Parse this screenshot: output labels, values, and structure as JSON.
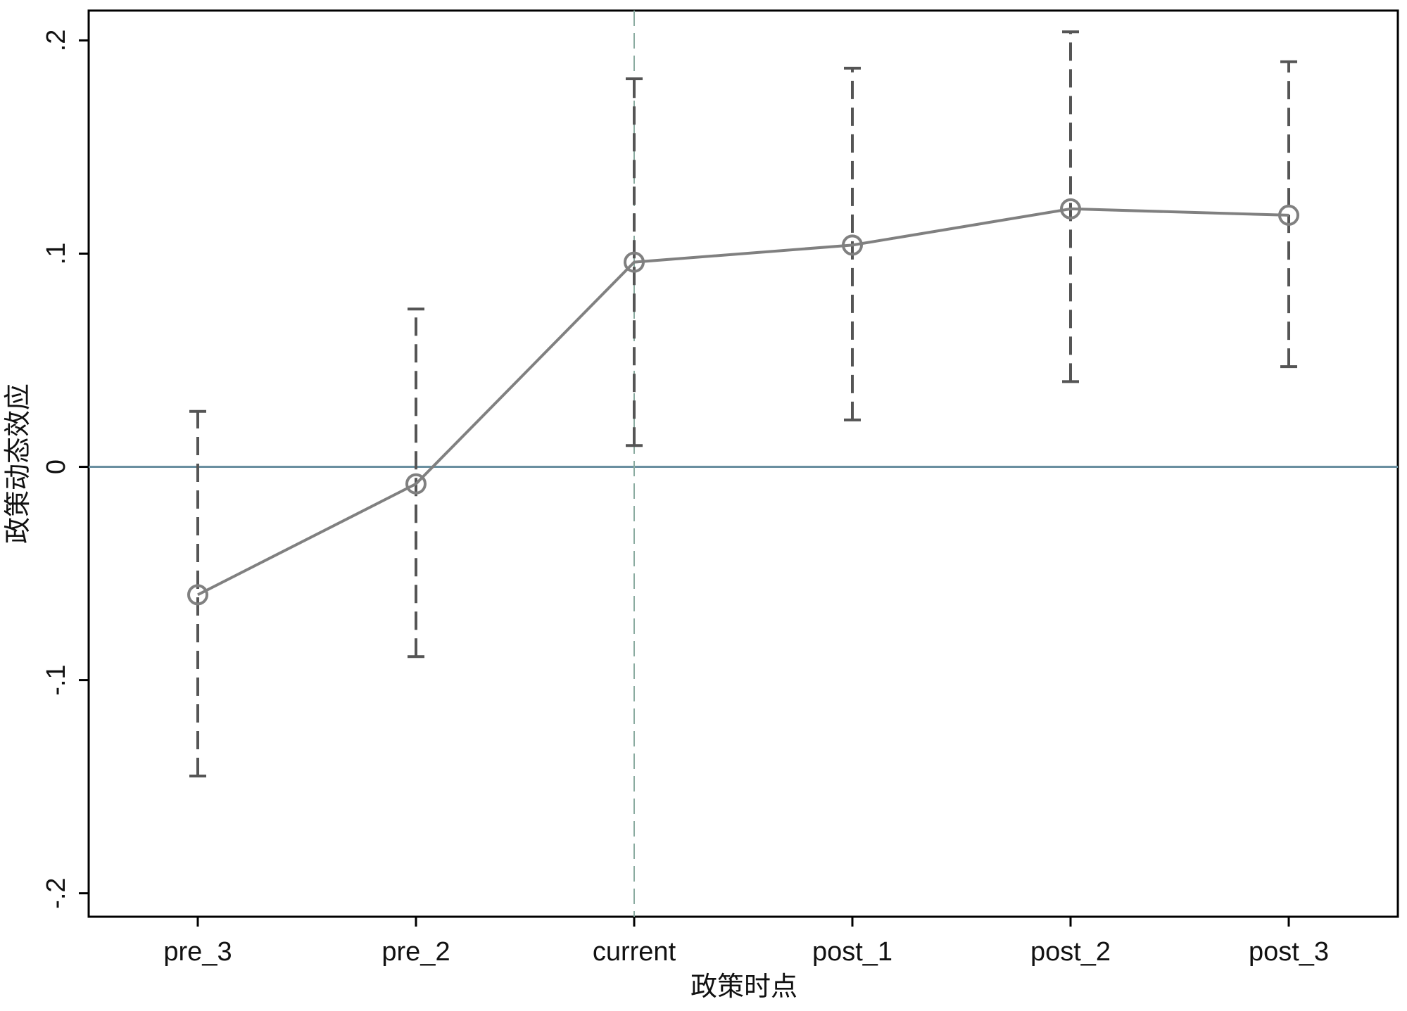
{
  "chart_data": {
    "type": "line",
    "x_label": "政策时点",
    "y_label": "政策动态效应",
    "categories": [
      "pre_3",
      "pre_2",
      "current",
      "post_1",
      "post_2",
      "post_3"
    ],
    "values": [
      -0.06,
      -0.008,
      0.096,
      0.104,
      0.121,
      0.118
    ],
    "ci_lower": [
      -0.145,
      -0.089,
      0.01,
      0.022,
      0.04,
      0.047
    ],
    "ci_upper": [
      0.026,
      0.074,
      0.182,
      0.187,
      0.204,
      0.19
    ],
    "color": "#808080",
    "errorbar_color": "#555555",
    "ylim": [
      -0.211,
      0.214
    ],
    "yticks": [
      {
        "value": -0.2,
        "label": "-.2"
      },
      {
        "value": -0.1,
        "label": "-.1"
      },
      0,
      {
        "value": 0.1,
        "label": ".1"
      },
      {
        "value": 0.2,
        "label": ".2"
      }
    ],
    "yline": 0,
    "yline_color": "#6a8fa0",
    "xline": "current",
    "xline_color": "#8aaba0"
  }
}
